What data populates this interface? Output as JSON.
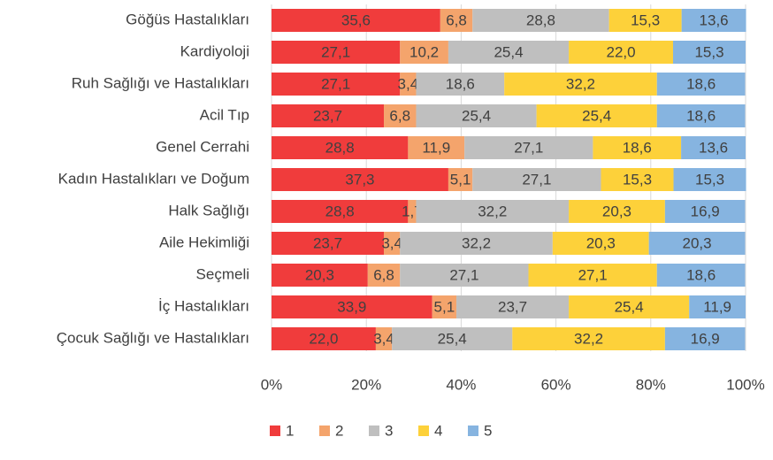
{
  "chart_data": {
    "type": "stacked_bar_horizontal",
    "categories": [
      "Göğüs Hastalıkları",
      "Kardiyoloji",
      "Ruh Sağlığı ve Hastalıkları",
      "Acil Tıp",
      "Genel Cerrahi",
      "Kadın Hastalıkları ve Doğum",
      "Halk Sağlığı",
      "Aile Hekimliği",
      "Seçmeli",
      "İç Hastalıkları",
      "Çocuk Sağlığı ve Hastalıkları"
    ],
    "series": [
      {
        "name": "1",
        "color": "#f03c3c",
        "values": [
          35.6,
          27.1,
          27.1,
          23.7,
          28.8,
          37.3,
          28.8,
          23.7,
          20.3,
          33.9,
          22.0
        ],
        "value_labels": [
          "35,6",
          "27,1",
          "27,1",
          "23,7",
          "28,8",
          "37,3",
          "28,8",
          "23,7",
          "20,3",
          "33,9",
          "22,0"
        ]
      },
      {
        "name": "2",
        "color": "#f4a46c",
        "values": [
          6.8,
          10.2,
          3.4,
          6.8,
          11.9,
          5.1,
          1.7,
          3.4,
          6.8,
          5.1,
          3.4
        ],
        "value_labels": [
          "6,8",
          "10,2",
          "3,4",
          "6,8",
          "11,9",
          "5,1",
          "1,7",
          "3,4",
          "6,8",
          "5,1",
          "3,4"
        ]
      },
      {
        "name": "3",
        "color": "#bfbfbf",
        "values": [
          28.8,
          25.4,
          18.6,
          25.4,
          27.1,
          27.1,
          32.2,
          32.2,
          27.1,
          23.7,
          25.4
        ],
        "value_labels": [
          "28,8",
          "25,4",
          "18,6",
          "25,4",
          "27,1",
          "27,1",
          "32,2",
          "32,2",
          "27,1",
          "23,7",
          "25,4"
        ]
      },
      {
        "name": "4",
        "color": "#fdd13a",
        "values": [
          15.3,
          22.0,
          32.2,
          25.4,
          18.6,
          15.3,
          20.3,
          20.3,
          27.1,
          25.4,
          32.2
        ],
        "value_labels": [
          "15,3",
          "22,0",
          "32,2",
          "25,4",
          "18,6",
          "15,3",
          "20,3",
          "20,3",
          "27,1",
          "25,4",
          "32,2"
        ]
      },
      {
        "name": "5",
        "color": "#86b4e0",
        "values": [
          13.6,
          15.3,
          18.6,
          18.6,
          13.6,
          15.3,
          16.9,
          20.3,
          18.6,
          11.9,
          16.9
        ],
        "value_labels": [
          "13,6",
          "15,3",
          "18,6",
          "18,6",
          "13,6",
          "15,3",
          "16,9",
          "20,3",
          "18,6",
          "11,9",
          "16,9"
        ]
      }
    ],
    "xlim": [
      0,
      100
    ],
    "xticks": [
      {
        "value": 0,
        "label": "0%"
      },
      {
        "value": 20,
        "label": "20%"
      },
      {
        "value": 40,
        "label": "40%"
      },
      {
        "value": 60,
        "label": "60%"
      },
      {
        "value": 80,
        "label": "80%"
      },
      {
        "value": 100,
        "label": "100%"
      }
    ],
    "grid": true,
    "legend": "bottom"
  }
}
